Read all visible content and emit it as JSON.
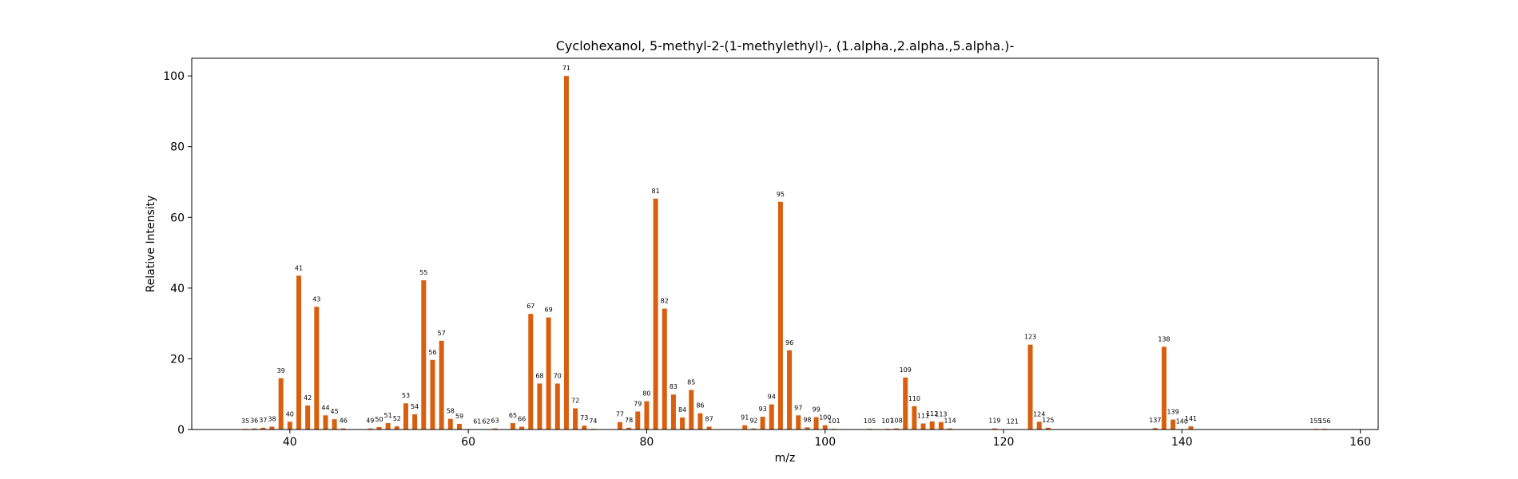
{
  "chart_data": {
    "type": "bar",
    "title": "Cyclohexanol, 5-methyl-2-(1-methylethyl)-, (1.alpha.,2.alpha.,5.alpha.)-",
    "xlabel": "m/z",
    "ylabel": "Relative Intensity",
    "xlim": [
      29,
      162
    ],
    "ylim": [
      0,
      105
    ],
    "xticks": [
      40,
      60,
      80,
      100,
      120,
      140,
      160
    ],
    "yticks": [
      0,
      20,
      40,
      60,
      80,
      100
    ],
    "grid": false,
    "bar_color": "#d95f0e",
    "x": [
      35,
      36,
      37,
      38,
      39,
      40,
      41,
      42,
      43,
      44,
      45,
      46,
      49,
      50,
      51,
      52,
      53,
      54,
      55,
      56,
      57,
      58,
      59,
      61,
      62,
      63,
      65,
      66,
      67,
      68,
      69,
      70,
      71,
      72,
      73,
      74,
      77,
      78,
      79,
      80,
      81,
      82,
      83,
      84,
      85,
      86,
      87,
      91,
      92,
      93,
      94,
      95,
      96,
      97,
      98,
      99,
      100,
      101,
      105,
      107,
      108,
      109,
      110,
      111,
      112,
      113,
      114,
      119,
      121,
      123,
      124,
      125,
      137,
      138,
      139,
      140,
      141,
      155,
      156
    ],
    "values": [
      0.2,
      0.3,
      0.5,
      0.8,
      14.5,
      2.2,
      43.5,
      6.8,
      34.7,
      4.0,
      2.9,
      0.3,
      0.3,
      0.7,
      1.8,
      0.9,
      7.4,
      4.3,
      42.2,
      19.7,
      25.1,
      3.0,
      1.6,
      0.1,
      0.1,
      0.3,
      1.8,
      0.8,
      32.7,
      13.0,
      31.7,
      13.0,
      100,
      6.0,
      1.1,
      0.2,
      2.1,
      0.5,
      5.1,
      8.0,
      65.3,
      34.2,
      9.9,
      3.4,
      11.2,
      4.6,
      0.8,
      1.2,
      0.3,
      3.6,
      7.1,
      64.4,
      22.4,
      4.0,
      0.6,
      3.5,
      1.2,
      0.2,
      0.2,
      0.2,
      0.3,
      14.7,
      6.6,
      1.7,
      2.3,
      2.1,
      0.3,
      0.3,
      0.1,
      24.0,
      2.2,
      0.5,
      0.4,
      23.4,
      2.8,
      0.1,
      0.9,
      0.2,
      0.2
    ]
  }
}
